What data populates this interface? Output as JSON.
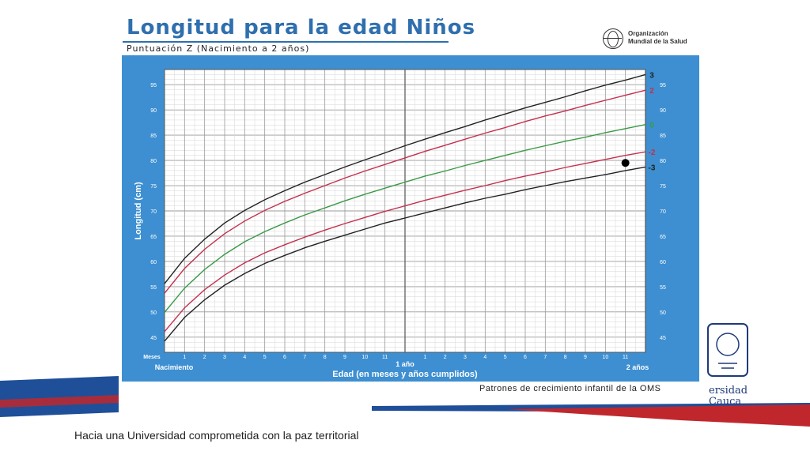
{
  "slide": {
    "title": "Longitud para la edad Niños",
    "subtitle": "Puntuación Z (Nacimiento a 2 años)",
    "logo_text_line1": "Organización",
    "logo_text_line2": "Mundial de la Salud",
    "caption": "Patrones de crecimiento infantil de la OMS",
    "footer": "Hacia una Universidad comprometida con la paz territorial",
    "university_text_line1": "ersidad",
    "university_text_line2": "Cauca",
    "colors": {
      "title": "#2f6fae",
      "panel": "#3d8fd1",
      "band_blue": "#1f4f99",
      "band_red": "#c0272d"
    }
  },
  "chart_data": {
    "type": "line",
    "title": "Longitud para la edad Niños",
    "subtitle": "Puntuación Z (Nacimiento a 2 años)",
    "xlabel": "Edad (en meses y años cumplidos)",
    "ylabel": "Longitud (cm)",
    "x_axis_prefix": "Meses",
    "x_tick_labels": [
      "1",
      "2",
      "3",
      "4",
      "5",
      "6",
      "7",
      "8",
      "9",
      "10",
      "11",
      "1 año",
      "1",
      "2",
      "3",
      "4",
      "5",
      "6",
      "7",
      "8",
      "9",
      "10",
      "11",
      "2 años"
    ],
    "x_bottom_labels": {
      "start": "Nacimiento",
      "mid": "1 año",
      "end": "2 años"
    },
    "x": [
      0,
      1,
      2,
      3,
      4,
      5,
      6,
      7,
      8,
      9,
      10,
      11,
      12,
      13,
      14,
      15,
      16,
      17,
      18,
      19,
      20,
      21,
      22,
      23,
      24
    ],
    "xlim": [
      0,
      24
    ],
    "ylim": [
      42,
      98
    ],
    "y_ticks": [
      45,
      50,
      55,
      60,
      65,
      70,
      75,
      80,
      85,
      90,
      95
    ],
    "grid": true,
    "series": [
      {
        "name": "3",
        "color": "#222222",
        "values": [
          55.6,
          60.6,
          64.4,
          67.6,
          70.1,
          72.2,
          74.0,
          75.7,
          77.2,
          78.7,
          80.1,
          81.5,
          82.9,
          84.2,
          85.5,
          86.7,
          88.0,
          89.2,
          90.4,
          91.5,
          92.6,
          93.8,
          94.9,
          95.9,
          97.0
        ]
      },
      {
        "name": "2",
        "color": "#c4304d",
        "values": [
          53.7,
          58.6,
          62.4,
          65.5,
          68.0,
          70.1,
          71.9,
          73.5,
          75.0,
          76.5,
          77.9,
          79.2,
          80.5,
          81.8,
          83.0,
          84.2,
          85.4,
          86.5,
          87.7,
          88.8,
          89.8,
          90.9,
          91.9,
          92.9,
          93.9
        ]
      },
      {
        "name": "0",
        "color": "#3a9a46",
        "values": [
          49.9,
          54.7,
          58.4,
          61.4,
          63.9,
          65.9,
          67.6,
          69.2,
          70.6,
          72.0,
          73.3,
          74.5,
          75.7,
          76.9,
          77.9,
          79.0,
          80.0,
          81.0,
          82.0,
          82.9,
          83.8,
          84.6,
          85.5,
          86.3,
          87.1
        ]
      },
      {
        "name": "-2",
        "color": "#c4304d",
        "values": [
          46.1,
          50.8,
          54.4,
          57.3,
          59.7,
          61.7,
          63.3,
          64.8,
          66.2,
          67.5,
          68.7,
          69.9,
          71.0,
          72.1,
          73.1,
          74.1,
          75.0,
          76.0,
          76.9,
          77.7,
          78.6,
          79.4,
          80.2,
          81.0,
          81.7
        ]
      },
      {
        "name": "-3",
        "color": "#222222",
        "values": [
          44.2,
          48.9,
          52.4,
          55.3,
          57.6,
          59.6,
          61.2,
          62.7,
          64.0,
          65.2,
          66.4,
          67.6,
          68.6,
          69.6,
          70.6,
          71.6,
          72.5,
          73.3,
          74.2,
          75.0,
          75.8,
          76.5,
          77.2,
          78.0,
          78.7
        ]
      }
    ],
    "points": [
      {
        "x": 23,
        "y": 79.5
      }
    ]
  }
}
